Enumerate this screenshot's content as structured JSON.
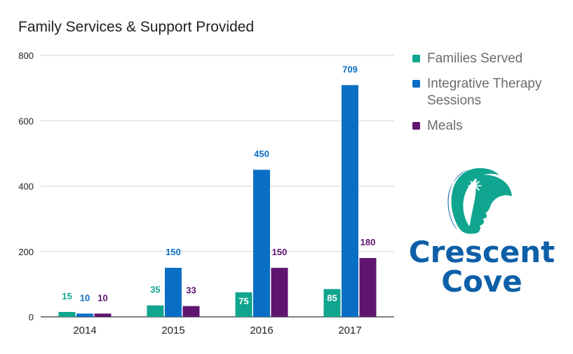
{
  "chart_data": {
    "type": "bar",
    "title": "Family Services & Support Provided",
    "categories": [
      "2014",
      "2015",
      "2016",
      "2017"
    ],
    "series": [
      {
        "name": "Families Served",
        "color": "#10a58f",
        "values": [
          15,
          35,
          75,
          85
        ]
      },
      {
        "name": "Integrative Therapy Sessions",
        "color": "#0a6fc4",
        "values": [
          10,
          150,
          450,
          709
        ]
      },
      {
        "name": "Meals",
        "color": "#5f1570",
        "values": [
          10,
          33,
          150,
          180
        ]
      }
    ],
    "ylim": [
      0,
      800
    ],
    "yticks": [
      "0",
      "200",
      "400",
      "600",
      "800"
    ],
    "grid": true,
    "legend_position": "right"
  },
  "logo": {
    "line1": "Crescent",
    "line2": "Cove",
    "text_color": "#0d5fa8",
    "crescent_color": "#10a58f",
    "face_color": "#0d5fa8"
  }
}
